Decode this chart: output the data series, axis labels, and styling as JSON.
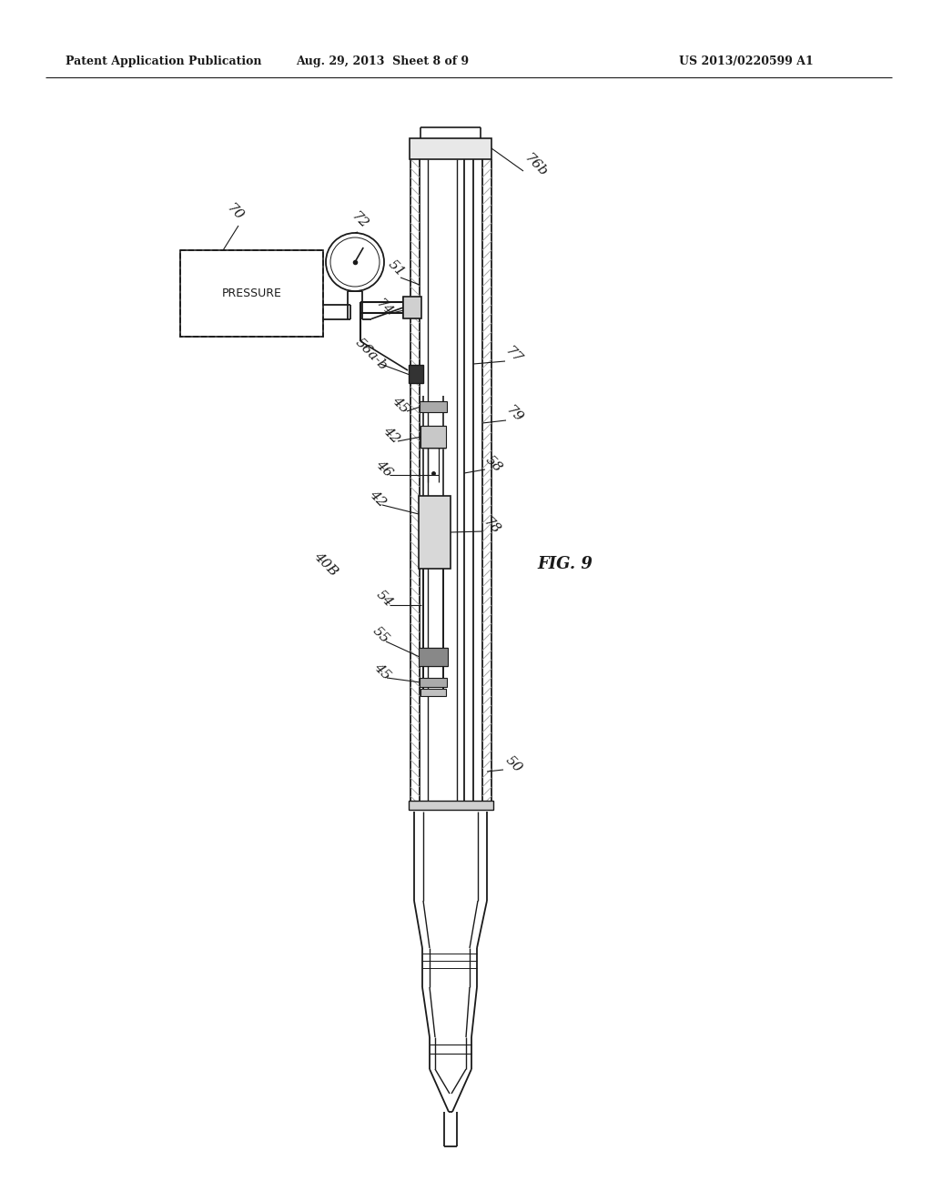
{
  "header_left": "Patent Application Publication",
  "header_center": "Aug. 29, 2013  Sheet 8 of 9",
  "header_right": "US 2013/0220599 A1",
  "fig_label": "FIG. 9",
  "bg_color": "#ffffff",
  "line_color": "#1a1a1a"
}
